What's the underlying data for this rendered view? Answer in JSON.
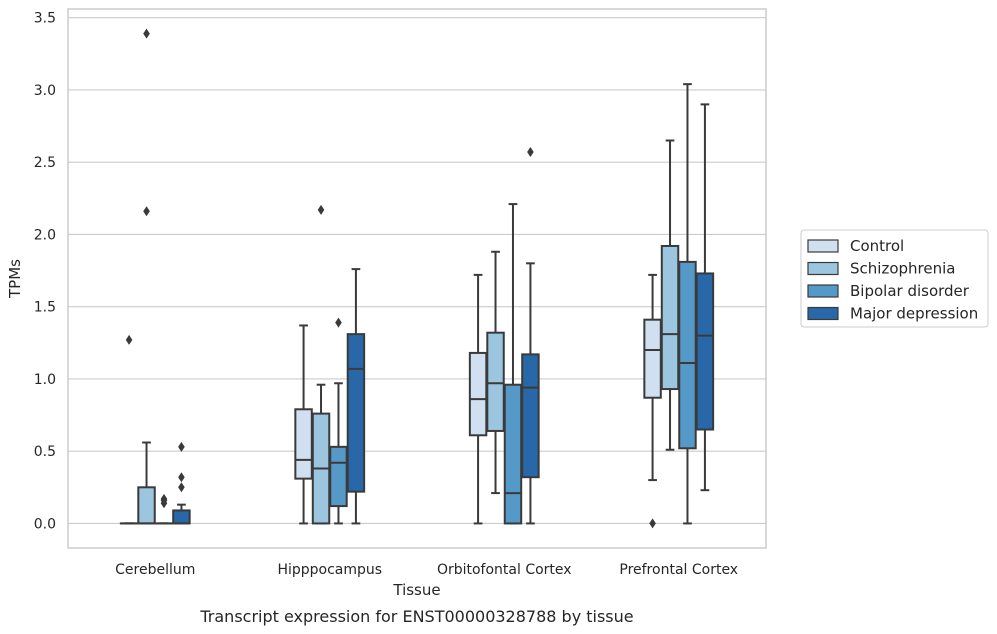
{
  "chart_data": {
    "type": "boxplot",
    "caption": "Transcript expression for ENST00000328788 by tissue",
    "xlabel": "Tissue",
    "ylabel": "TPMs",
    "ylim": [
      -0.17,
      3.56
    ],
    "yticks": [
      0.0,
      0.5,
      1.0,
      1.5,
      2.0,
      2.5,
      3.0,
      3.5
    ],
    "ytick_labels": [
      "0.0",
      "0.5",
      "1.0",
      "1.5",
      "2.0",
      "2.5",
      "3.0",
      "3.5"
    ],
    "grid": true,
    "legend_position": "right",
    "categories": [
      "Cerebellum",
      "Hipppocampus",
      "Orbitofontal Cortex",
      "Prefrontal Cortex"
    ],
    "series": [
      {
        "name": "Control",
        "color": "#d0e0f1",
        "boxes": [
          {
            "whislo": 0.0,
            "q1": 0.0,
            "med": 0.0,
            "q3": 0.0,
            "whishi": 0.0,
            "fliers": [
              1.27
            ]
          },
          {
            "whislo": 0.0,
            "q1": 0.31,
            "med": 0.44,
            "q3": 0.79,
            "whishi": 1.37,
            "fliers": []
          },
          {
            "whislo": 0.0,
            "q1": 0.61,
            "med": 0.86,
            "q3": 1.18,
            "whishi": 1.72,
            "fliers": []
          },
          {
            "whislo": 0.3,
            "q1": 0.87,
            "med": 1.2,
            "q3": 1.41,
            "whishi": 1.72,
            "fliers": [
              0.0
            ]
          }
        ]
      },
      {
        "name": "Schizophrenia",
        "color": "#9cc5df",
        "boxes": [
          {
            "whislo": 0.0,
            "q1": 0.0,
            "med": 0.0,
            "q3": 0.25,
            "whishi": 0.56,
            "fliers": [
              2.16,
              3.39
            ]
          },
          {
            "whislo": 0.0,
            "q1": 0.0,
            "med": 0.38,
            "q3": 0.76,
            "whishi": 0.96,
            "fliers": [
              2.17
            ]
          },
          {
            "whislo": 0.21,
            "q1": 0.64,
            "med": 0.97,
            "q3": 1.32,
            "whishi": 1.88,
            "fliers": []
          },
          {
            "whislo": 0.51,
            "q1": 0.93,
            "med": 1.31,
            "q3": 1.92,
            "whishi": 2.65,
            "fliers": []
          }
        ]
      },
      {
        "name": "Bipolar disorder",
        "color": "#5499c7",
        "boxes": [
          {
            "whislo": 0.0,
            "q1": 0.0,
            "med": 0.0,
            "q3": 0.0,
            "whishi": 0.0,
            "fliers": [
              0.14,
              0.16,
              0.17
            ]
          },
          {
            "whislo": 0.0,
            "q1": 0.12,
            "med": 0.42,
            "q3": 0.53,
            "whishi": 0.97,
            "fliers": [
              1.39
            ]
          },
          {
            "whislo": 0.0,
            "q1": 0.0,
            "med": 0.21,
            "q3": 0.96,
            "whishi": 2.21,
            "fliers": []
          },
          {
            "whislo": 0.0,
            "q1": 0.52,
            "med": 1.11,
            "q3": 1.81,
            "whishi": 3.04,
            "fliers": []
          }
        ]
      },
      {
        "name": "Major depression",
        "color": "#2868a8",
        "boxes": [
          {
            "whislo": 0.0,
            "q1": 0.0,
            "med": 0.0,
            "q3": 0.09,
            "whishi": 0.13,
            "fliers": [
              0.25,
              0.32,
              0.53
            ]
          },
          {
            "whislo": 0.0,
            "q1": 0.22,
            "med": 1.07,
            "q3": 1.31,
            "whishi": 1.76,
            "fliers": []
          },
          {
            "whislo": 0.0,
            "q1": 0.32,
            "med": 0.94,
            "q3": 1.17,
            "whishi": 1.8,
            "fliers": [
              2.57
            ]
          },
          {
            "whislo": 0.23,
            "q1": 0.65,
            "med": 1.3,
            "q3": 1.73,
            "whishi": 2.9,
            "fliers": []
          }
        ]
      }
    ]
  }
}
